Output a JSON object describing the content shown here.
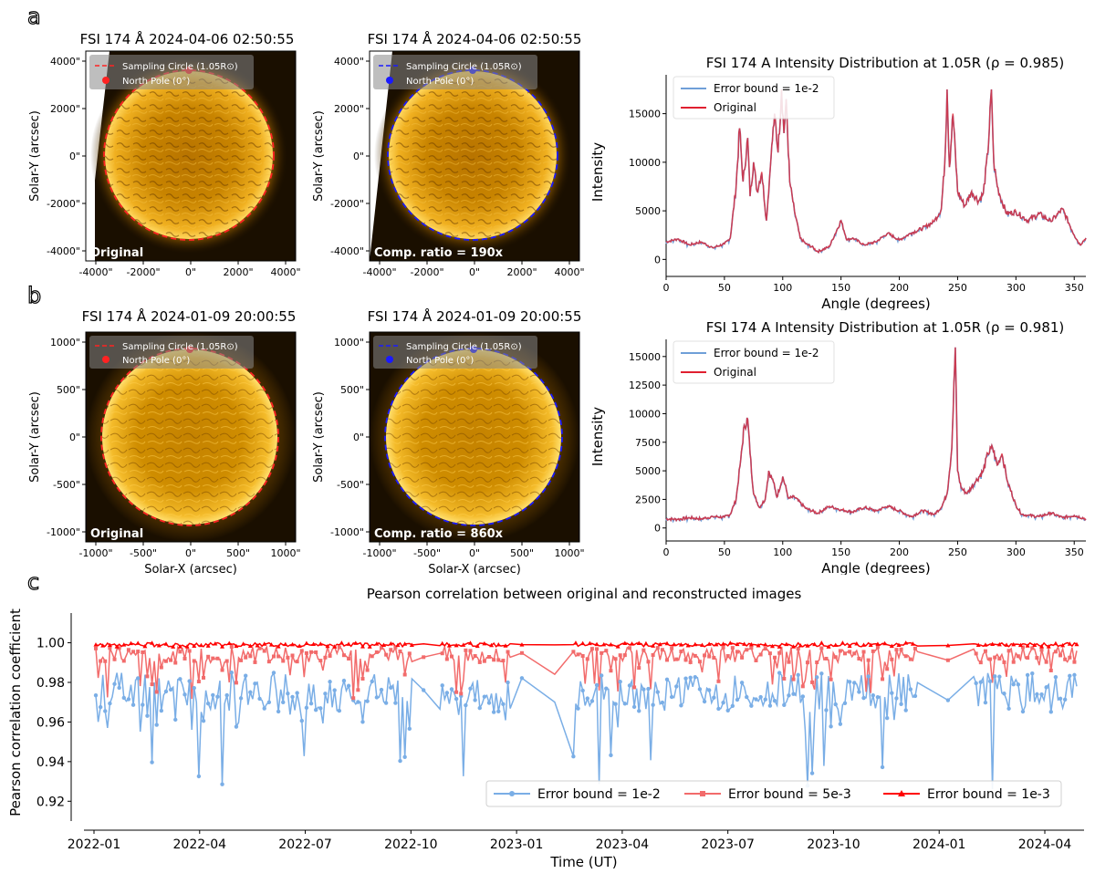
{
  "panel_labels": {
    "a": "a",
    "b": "b",
    "c": "c"
  },
  "row_a": {
    "left_title": "FSI 174 Å 2024-04-06 02:50:55",
    "mid_title": "FSI 174 Å 2024-04-06 02:50:55",
    "left_corner": "Original",
    "mid_corner": "Comp. ratio = 190x",
    "legend_circle_left": "Sampling Circle (1.05R⊙)",
    "legend_circle_mid": "Sampling Circle (1.05R⊙)",
    "legend_pole_left": "North Pole (0°)",
    "legend_pole_mid": "North Pole (0°)",
    "xlabel_left": "Solar-X (arcsec)",
    "xlabel_mid": "Solar-X (arcsec)",
    "ylabel_left": "Solar-Y (arcsec)",
    "ylabel_mid": "Solar-Y (arcsec)",
    "ticks_x": [
      "-4000\"",
      "-2000\"",
      "0\"",
      "2000\"",
      "4000\""
    ],
    "ticks_y": [
      "4000\"",
      "2000\"",
      "0\"",
      "-2000\"",
      "-4000\""
    ]
  },
  "row_b": {
    "left_title": "FSI 174 Å 2024-01-09 20:00:55",
    "mid_title": "FSI 174 Å 2024-01-09 20:00:55",
    "left_corner": "Original",
    "mid_corner": "Comp. ratio = 860x",
    "legend_circle_left": "Sampling Circle (1.05R⊙)",
    "legend_circle_mid": "Sampling Circle (1.05R⊙)",
    "legend_pole_left": "North Pole (0°)",
    "legend_pole_mid": "North Pole (0°)",
    "xlabel_left": "Solar-X (arcsec)",
    "xlabel_mid": "Solar-X (arcsec)",
    "ylabel_left": "Solar-Y (arcsec)",
    "ylabel_mid": "Solar-Y (arcsec)",
    "ticks_x": [
      "-1000\"",
      "-500\"",
      "0\"",
      "500\"",
      "1000\""
    ],
    "ticks_y": [
      "1000\"",
      "500\"",
      "0\"",
      "-500\"",
      "-1000\""
    ]
  },
  "colors": {
    "original": "#ff2222",
    "reconstructed": "#1a1aff",
    "blue_series": "#7aaee6",
    "mid_red": "#f26b6b",
    "dark_red": "#ff0000"
  },
  "chart_data": [
    {
      "type": "line",
      "title": "FSI 174 A Intensity Distribution at 1.05R (ρ = 0.985)",
      "xlabel": "Angle (degrees)",
      "ylabel": "Intensity",
      "xlim": [
        0,
        360
      ],
      "ylim": [
        -1000,
        19000
      ],
      "xticks": [
        0,
        50,
        100,
        150,
        200,
        250,
        300,
        350
      ],
      "yticks": [
        0,
        5000,
        10000,
        15000
      ],
      "legend": "top-left",
      "series": [
        {
          "name": "Error bound = 1e-2"
        },
        {
          "name": "Original"
        }
      ],
      "x": [
        0,
        10,
        20,
        30,
        40,
        50,
        55,
        60,
        63,
        66,
        70,
        72,
        75,
        78,
        82,
        86,
        90,
        93,
        96,
        99,
        101,
        103,
        106,
        110,
        115,
        120,
        125,
        130,
        140,
        150,
        155,
        160,
        170,
        180,
        190,
        200,
        210,
        220,
        230,
        236,
        239,
        241,
        243,
        246,
        250,
        256,
        262,
        268,
        272,
        276,
        279,
        281,
        284,
        288,
        292,
        300,
        310,
        320,
        330,
        340,
        350,
        355,
        360
      ],
      "y": [
        1800,
        2100,
        1500,
        1800,
        1200,
        1600,
        2200,
        7500,
        13500,
        8000,
        12500,
        6500,
        10000,
        7000,
        9000,
        4000,
        10500,
        15000,
        11000,
        17500,
        13000,
        16500,
        8000,
        5000,
        2200,
        1600,
        1300,
        800,
        1300,
        4000,
        2000,
        2200,
        1500,
        1800,
        2700,
        2000,
        2700,
        3200,
        3900,
        5200,
        10000,
        17500,
        9500,
        15000,
        7000,
        5500,
        7000,
        6000,
        6800,
        11000,
        17500,
        10000,
        7500,
        6000,
        4700,
        4900,
        4000,
        4700,
        3900,
        5200,
        2500,
        1500,
        2200
      ]
    },
    {
      "type": "line",
      "title": "FSI 174 A Intensity Distribution at 1.05R (ρ = 0.981)",
      "xlabel": "Angle (degrees)",
      "ylabel": "Intensity",
      "xlim": [
        0,
        360
      ],
      "ylim": [
        -500,
        16500
      ],
      "xticks": [
        0,
        50,
        100,
        150,
        200,
        250,
        300,
        350
      ],
      "yticks": [
        0,
        2500,
        5000,
        7500,
        10000,
        12500,
        15000
      ],
      "legend": "top-left",
      "series": [
        {
          "name": "Error bound = 1e-2"
        },
        {
          "name": "Original"
        }
      ],
      "x": [
        0,
        10,
        20,
        30,
        40,
        50,
        55,
        60,
        64,
        67,
        70,
        72,
        75,
        80,
        85,
        88,
        92,
        95,
        100,
        105,
        110,
        120,
        130,
        140,
        150,
        160,
        170,
        180,
        190,
        200,
        210,
        220,
        230,
        236,
        241,
        245,
        248,
        250,
        253,
        258,
        265,
        272,
        276,
        280,
        284,
        288,
        293,
        300,
        305,
        310,
        320,
        330,
        340,
        350,
        360
      ],
      "y": [
        800,
        750,
        900,
        800,
        1000,
        950,
        1200,
        2500,
        6000,
        9000,
        9500,
        6500,
        3000,
        1800,
        2500,
        5000,
        4000,
        2700,
        4500,
        2600,
        2700,
        1700,
        1300,
        1900,
        1600,
        1400,
        1800,
        1500,
        1900,
        1500,
        1000,
        1500,
        1200,
        1800,
        3000,
        7000,
        15800,
        5000,
        3500,
        3000,
        4000,
        5000,
        6500,
        7000,
        5500,
        6500,
        4000,
        2000,
        1200,
        1100,
        1000,
        1300,
        900,
        1100,
        800
      ]
    },
    {
      "type": "line",
      "title": "Pearson correlation between original and reconstructed images",
      "xlabel": "Time (UT)",
      "ylabel": "Pearson correlation coefficient",
      "xticks": [
        "2022-01",
        "2022-04",
        "2022-07",
        "2022-10",
        "2023-01",
        "2023-04",
        "2023-07",
        "2023-10",
        "2024-01",
        "2024-04"
      ],
      "xlim": [
        "2021-12-01",
        "2024-06-01"
      ],
      "ylim": [
        0.91,
        1.015
      ],
      "yticks": [
        0.92,
        0.94,
        0.96,
        0.98,
        1.0
      ],
      "ytick_labels": [
        "0.92",
        "0.94",
        "0.96",
        "0.98",
        "1.00"
      ],
      "legend": "lower-right",
      "series": [
        {
          "name": "Error bound = 1e-2",
          "marker": "circle"
        },
        {
          "name": "Error bound = 5e-3",
          "marker": "square"
        },
        {
          "name": "Error bound = 1e-3",
          "marker": "triangle"
        }
      ]
    }
  ]
}
